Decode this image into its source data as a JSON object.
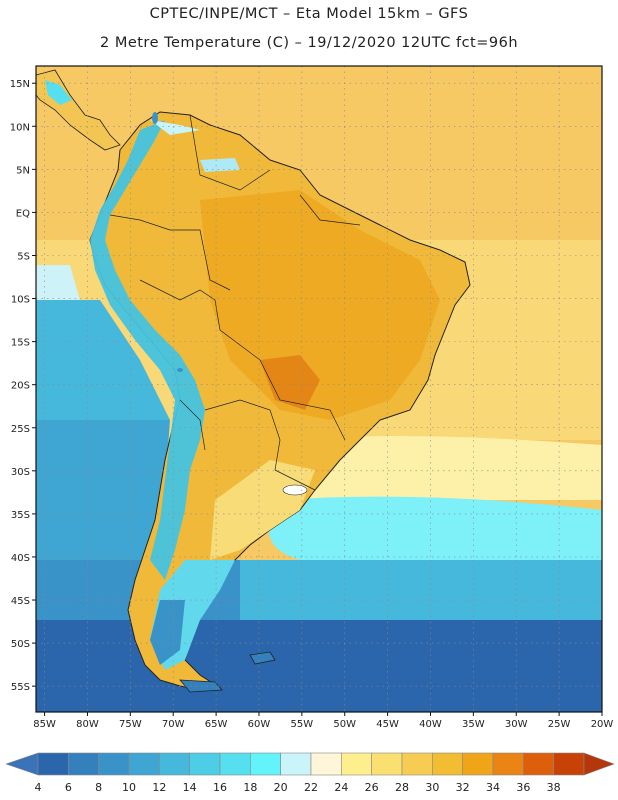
{
  "title_line1": "CPTEC/INPE/MCT –  Eta Model 15km – GFS",
  "title_line2": "2 Metre Temperature (C) – 19/12/2020 12UTC fct=96h",
  "map": {
    "lon_range": [
      -86,
      -20
    ],
    "lat_range": [
      -58,
      17
    ],
    "lat_labels": [
      "15N",
      "10N",
      "5N",
      "EQ",
      "5S",
      "10S",
      "15S",
      "20S",
      "25S",
      "30S",
      "35S",
      "40S",
      "45S",
      "50S",
      "55S"
    ],
    "lat_values": [
      15,
      10,
      5,
      0,
      -5,
      -10,
      -15,
      -20,
      -25,
      -30,
      -35,
      -40,
      -45,
      -50,
      -55
    ],
    "lon_labels": [
      "85W",
      "80W",
      "75W",
      "70W",
      "65W",
      "60W",
      "55W",
      "50W",
      "45W",
      "40W",
      "35W",
      "30W",
      "25W",
      "20W"
    ],
    "lon_values": [
      -85,
      -80,
      -75,
      -70,
      -65,
      -60,
      -55,
      -50,
      -45,
      -40,
      -35,
      -30,
      -25,
      -20
    ],
    "grid": true
  },
  "legend": {
    "labels": [
      "4",
      "6",
      "8",
      "10",
      "12",
      "14",
      "16",
      "18",
      "20",
      "22",
      "24",
      "26",
      "28",
      "30",
      "32",
      "34",
      "36",
      "38"
    ],
    "colors": [
      "#2b66ad",
      "#3380bd",
      "#3a93c8",
      "#3fa5d2",
      "#45b8dc",
      "#4dcde6",
      "#56dfef",
      "#62f3fb",
      "#c9f4fa",
      "#fff6d9",
      "#fdef8e",
      "#fae070",
      "#f6cd52",
      "#f2bc33",
      "#f0a518",
      "#ea8414",
      "#dd5f0c",
      "#c84106"
    ],
    "low_color": "#3a73b8",
    "high_color": "#b4360a"
  }
}
